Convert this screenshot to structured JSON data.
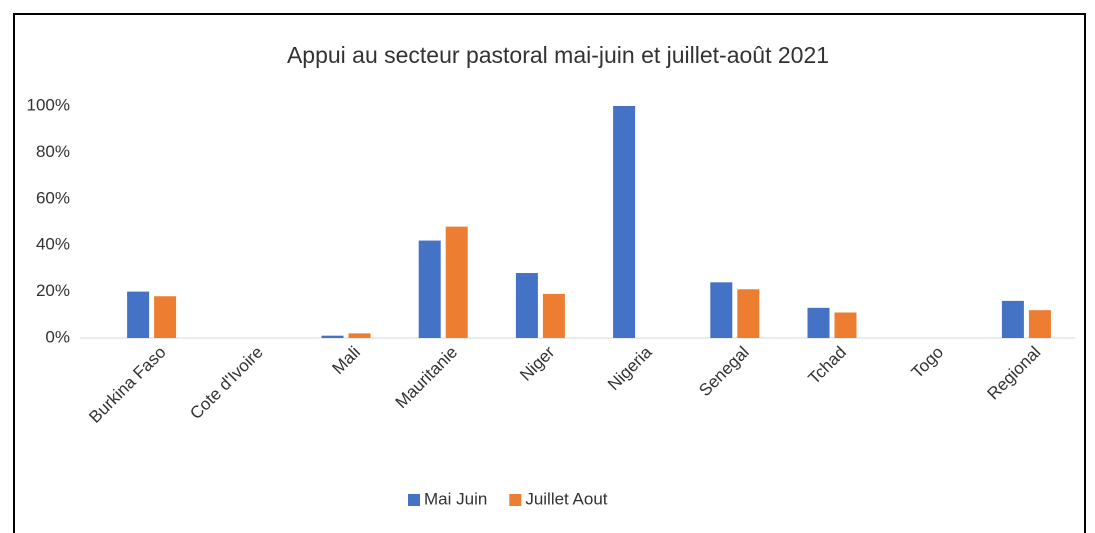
{
  "chart_data": {
    "type": "bar",
    "title": "Appui au secteur pastoral mai-juin et juillet-août 2021",
    "categories": [
      "Burkina Faso",
      "Cote d'Ivoire",
      "Mali",
      "Mauritanie",
      "Niger",
      "Nigeria",
      "Senegal",
      "Tchad",
      "Togo",
      "Regional"
    ],
    "series": [
      {
        "name": "Mai Juin",
        "color": "#4472c4",
        "values": [
          20,
          0,
          1,
          42,
          28,
          100,
          24,
          13,
          0,
          16
        ]
      },
      {
        "name": "Juillet Aout",
        "color": "#ed7d31",
        "values": [
          18,
          0,
          2,
          48,
          19,
          0,
          21,
          11,
          0,
          12
        ]
      }
    ],
    "ylim": [
      0,
      100
    ],
    "yticks": [
      {
        "value": 0,
        "label": "0%"
      },
      {
        "value": 20,
        "label": "20%"
      },
      {
        "value": 40,
        "label": "40%"
      },
      {
        "value": 60,
        "label": "60%"
      },
      {
        "value": 80,
        "label": "80%"
      },
      {
        "value": 100,
        "label": "100%"
      }
    ],
    "grid": false,
    "legend": "bottom"
  }
}
